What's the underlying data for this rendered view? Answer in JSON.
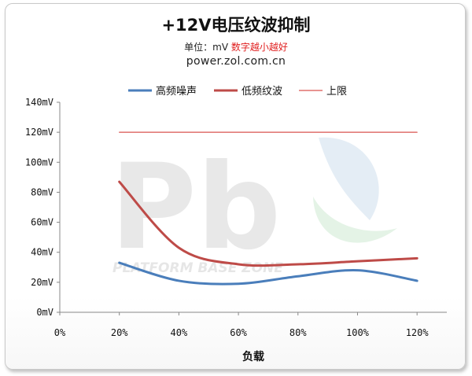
{
  "header": {
    "title": "+12V电压纹波抑制",
    "subtitle_unit": "单位：mV",
    "subtitle_note": "数字越小越好",
    "source": "power.zol.com.cn"
  },
  "watermark": {
    "text": "PLATFORM BASE ZONE"
  },
  "chart_data": {
    "type": "line",
    "xlabel": "负载",
    "ylabel": "",
    "x": [
      20,
      40,
      60,
      80,
      100,
      120
    ],
    "x_ticks": [
      "0%",
      "20%",
      "40%",
      "60%",
      "80%",
      "100%",
      "120%"
    ],
    "y_ticks": [
      "0mV",
      "20mV",
      "40mV",
      "60mV",
      "80mV",
      "100mV",
      "120mV",
      "140mV"
    ],
    "xlim": [
      0,
      130
    ],
    "ylim": [
      0,
      140
    ],
    "grid": false,
    "legend_position": "top",
    "series": [
      {
        "name": "高频噪声",
        "color": "#4a7ebb",
        "values": [
          33,
          21,
          19,
          24,
          28,
          21
        ]
      },
      {
        "name": "低频纹波",
        "color": "#be4b48",
        "values": [
          87,
          43,
          32,
          32,
          34,
          36
        ]
      },
      {
        "name": "上限",
        "color": "#d9534f",
        "values": [
          120,
          120,
          120,
          120,
          120,
          120
        ]
      }
    ]
  }
}
